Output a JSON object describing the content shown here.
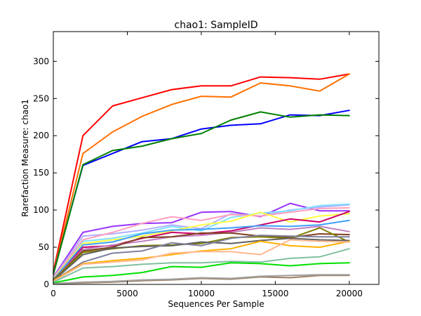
{
  "chart_data": {
    "type": "line",
    "title": "chao1: SampleID",
    "xlabel": "Sequences Per Sample",
    "ylabel": "Rarefaction Measure: chao1",
    "xlim": [
      0,
      22000
    ],
    "ylim": [
      0,
      340
    ],
    "xticks": [
      0,
      5000,
      10000,
      15000,
      20000
    ],
    "yticks": [
      0,
      50,
      100,
      150,
      200,
      250,
      300
    ],
    "grid": false,
    "legend": "none",
    "x": [
      10,
      2000,
      4000,
      6000,
      8000,
      10000,
      12000,
      14000,
      16000,
      18000,
      20000
    ],
    "series": [
      {
        "color": "#ff0000",
        "values": [
          18,
          200,
          240,
          251,
          262,
          267,
          267,
          279,
          278,
          276,
          283
        ]
      },
      {
        "color": "#ff7000",
        "values": [
          16,
          176,
          205,
          226,
          242,
          253,
          252,
          271,
          267,
          260,
          283
        ]
      },
      {
        "color": "#0000ff",
        "values": [
          15,
          160,
          176,
          192,
          196,
          209,
          214,
          216,
          228,
          227,
          234
        ]
      },
      {
        "color": "#008000",
        "values": [
          14,
          161,
          180,
          186,
          196,
          203,
          221,
          232,
          225,
          228,
          227
        ]
      },
      {
        "color": "#9933ff",
        "values": [
          10,
          70,
          78,
          82,
          83,
          97,
          98,
          91,
          109,
          99,
          99
        ]
      },
      {
        "color": "#b0b0ff",
        "values": [
          9,
          65,
          68,
          73,
          80,
          75,
          95,
          92,
          100,
          104,
          107
        ]
      },
      {
        "color": "#80e0ff",
        "values": [
          8,
          58,
          62,
          69,
          78,
          72,
          90,
          96,
          99,
          106,
          108
        ]
      },
      {
        "color": "#ffa0c0",
        "values": [
          9,
          60,
          70,
          82,
          91,
          86,
          94,
          92,
          97,
          102,
          103
        ]
      },
      {
        "color": "#ffff40",
        "values": [
          8,
          55,
          60,
          65,
          72,
          80,
          85,
          97,
          84,
          92,
          95
        ]
      },
      {
        "color": "#cc0066",
        "values": [
          7,
          50,
          52,
          62,
          70,
          68,
          72,
          80,
          88,
          84,
          98
        ]
      },
      {
        "color": "#40a0ff",
        "values": [
          7,
          53,
          57,
          68,
          73,
          74,
          76,
          79,
          78,
          80,
          86
        ]
      },
      {
        "color": "#c080c0",
        "values": [
          6,
          47,
          53,
          58,
          64,
          66,
          70,
          76,
          74,
          78,
          71
        ]
      },
      {
        "color": "#804020",
        "values": [
          6,
          45,
          50,
          63,
          64,
          69,
          69,
          65,
          63,
          68,
          67
        ]
      },
      {
        "color": "#808000",
        "values": [
          6,
          43,
          48,
          52,
          53,
          55,
          63,
          64,
          62,
          76,
          57
        ]
      },
      {
        "color": "#606060",
        "values": [
          5,
          40,
          49,
          51,
          52,
          57,
          55,
          59,
          62,
          60,
          59
        ]
      },
      {
        "color": "#8080a0",
        "values": [
          5,
          30,
          42,
          45,
          56,
          52,
          62,
          66,
          65,
          64,
          64
        ]
      },
      {
        "color": "#ffb000",
        "values": [
          5,
          28,
          32,
          35,
          40,
          45,
          48,
          58,
          52,
          50,
          58
        ]
      },
      {
        "color": "#ffb890",
        "values": [
          4,
          27,
          30,
          33,
          42,
          44,
          44,
          40,
          60,
          58,
          57
        ]
      },
      {
        "color": "#80c0a0",
        "values": [
          3,
          22,
          24,
          27,
          29,
          29,
          31,
          30,
          35,
          37,
          48
        ]
      },
      {
        "color": "#00e000",
        "values": [
          2,
          10,
          12,
          16,
          24,
          23,
          29,
          28,
          25,
          28,
          29
        ]
      },
      {
        "color": "#a08060",
        "values": [
          1,
          2,
          3,
          5,
          6,
          8,
          7,
          10,
          9,
          12,
          12
        ]
      },
      {
        "color": "#a0a0a0",
        "values": [
          1,
          3,
          4,
          6,
          7,
          9,
          8,
          11,
          12,
          13,
          13
        ]
      }
    ]
  }
}
